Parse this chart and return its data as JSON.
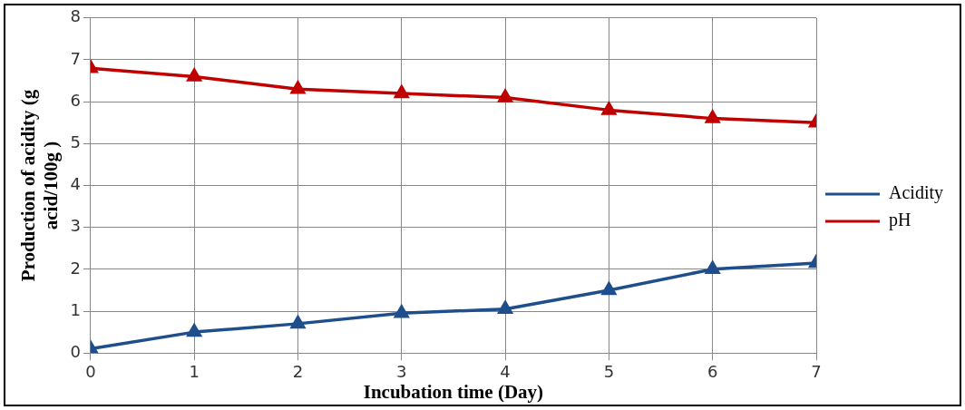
{
  "chart_data": {
    "type": "line",
    "xlabel": "Incubation time (Day)",
    "ylabel": "Production of acidity (g acid/100g )",
    "x": [
      0,
      1,
      2,
      3,
      4,
      5,
      6,
      7
    ],
    "series": [
      {
        "name": "Acidity",
        "color": "#1f4e8c",
        "values": [
          0.1,
          0.5,
          0.7,
          0.95,
          1.05,
          1.5,
          2.0,
          2.15
        ]
      },
      {
        "name": "pH",
        "color": "#c00000",
        "values": [
          6.8,
          6.6,
          6.3,
          6.2,
          6.1,
          5.8,
          5.6,
          5.5
        ]
      }
    ],
    "xlim": [
      0,
      7
    ],
    "xticks": [
      0,
      1,
      2,
      3,
      4,
      5,
      6,
      7
    ],
    "ylim": [
      0,
      8
    ],
    "yticks": [
      0,
      1,
      2,
      3,
      4,
      5,
      6,
      7,
      8
    ],
    "grid": true,
    "legend": "right",
    "marker": "triangle",
    "line_style": "solid"
  }
}
